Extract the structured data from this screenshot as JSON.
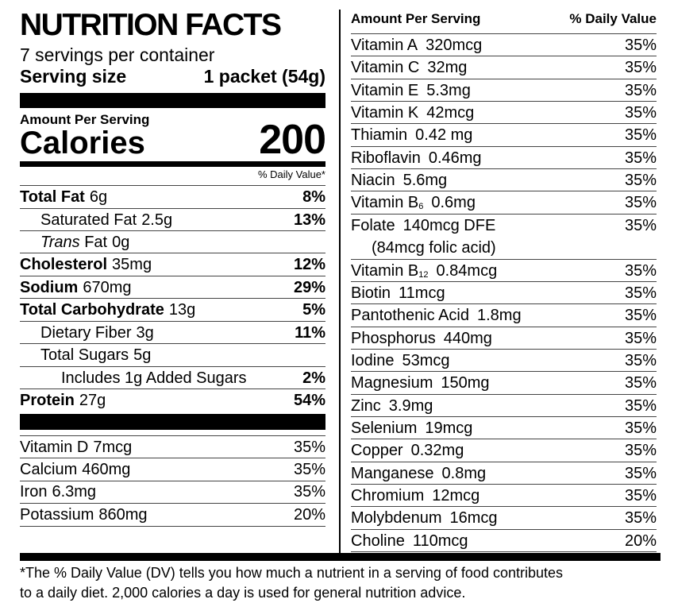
{
  "left": {
    "title": "NUTRITION FACTS",
    "servings": "7 servings per container",
    "serving_size_label": "Serving size",
    "serving_size_value": "1 packet (54g)",
    "amount_per_serving": "Amount Per Serving",
    "calories_label": "Calories",
    "calories_value": "200",
    "daily_value_header": "% Daily Value*",
    "nutrients": [
      {
        "name": "Total Fat",
        "amount": "6g",
        "dv": "8%"
      },
      {
        "name": "Saturated Fat",
        "amount": "2.5g",
        "dv": "13%"
      },
      {
        "name_italic": "Trans",
        "name": "Fat",
        "amount": "0g"
      },
      {
        "name": "Cholesterol",
        "amount": "35mg",
        "dv": "12%"
      },
      {
        "name": "Sodium",
        "amount": "670mg",
        "dv": "29%"
      },
      {
        "name": "Total Carbohydrate",
        "amount": "13g",
        "dv": "5%"
      },
      {
        "name": "Dietary Fiber",
        "amount": "3g",
        "dv": "11%"
      },
      {
        "name": "Total Sugars",
        "amount": "5g"
      },
      {
        "name": "Includes 1g Added Sugars",
        "dv": "2%"
      },
      {
        "name": "Protein",
        "amount": "27g",
        "dv": "54%"
      }
    ],
    "vitamins": [
      {
        "name": "Vitamin D",
        "amount": "7mcg",
        "dv": "35%"
      },
      {
        "name": "Calcium",
        "amount": "460mg",
        "dv": "35%"
      },
      {
        "name": "Iron",
        "amount": "6.3mg",
        "dv": "35%"
      },
      {
        "name": "Potassium",
        "amount": "860mg",
        "dv": "20%"
      }
    ]
  },
  "right": {
    "header_amount": "Amount Per Serving",
    "header_dv": "% Daily Value",
    "rows": [
      {
        "name": "Vitamin A",
        "amount": "320mcg",
        "dv": "35%"
      },
      {
        "name": "Vitamin C",
        "amount": "32mg",
        "dv": "35%"
      },
      {
        "name": "Vitamin E",
        "amount": "5.3mg",
        "dv": "35%"
      },
      {
        "name": "Vitamin K",
        "amount": "42mcg",
        "dv": "35%"
      },
      {
        "name": "Thiamin",
        "amount": "0.42 mg",
        "dv": "35%"
      },
      {
        "name": "Riboflavin",
        "amount": "0.46mg",
        "dv": "35%"
      },
      {
        "name": "Niacin",
        "amount": "5.6mg",
        "dv": "35%"
      },
      {
        "name": "Vitamin B",
        "sub": "6",
        "amount": "0.6mg",
        "dv": "35%"
      },
      {
        "name": "Folate",
        "amount": "140mcg DFE",
        "note": "(84mcg folic acid)",
        "dv": "35%"
      },
      {
        "name": "Vitamin B",
        "sub": "12",
        "amount": "0.84mcg",
        "dv": "35%"
      },
      {
        "name": "Biotin",
        "amount": "11mcg",
        "dv": "35%"
      },
      {
        "name": "Pantothenic Acid",
        "amount": "1.8mg",
        "dv": "35%"
      },
      {
        "name": "Phosphorus",
        "amount": "440mg",
        "dv": "35%"
      },
      {
        "name": "Iodine",
        "amount": "53mcg",
        "dv": "35%"
      },
      {
        "name": "Magnesium",
        "amount": "150mg",
        "dv": "35%"
      },
      {
        "name": "Zinc",
        "amount": "3.9mg",
        "dv": "35%"
      },
      {
        "name": "Selenium",
        "amount": "19mcg",
        "dv": "35%"
      },
      {
        "name": "Copper",
        "amount": "0.32mg",
        "dv": "35%"
      },
      {
        "name": "Manganese",
        "amount": "0.8mg",
        "dv": "35%"
      },
      {
        "name": "Chromium",
        "amount": "12mcg",
        "dv": "35%"
      },
      {
        "name": "Molybdenum",
        "amount": "16mcg",
        "dv": "35%"
      },
      {
        "name": "Choline",
        "amount": "110mcg",
        "dv": "20%"
      }
    ]
  },
  "footnote": [
    "*The % Daily Value (DV) tells you how much a nutrient in a serving of food contributes",
    "to a daily diet. 2,000 calories a day is used for general nutrition advice."
  ]
}
